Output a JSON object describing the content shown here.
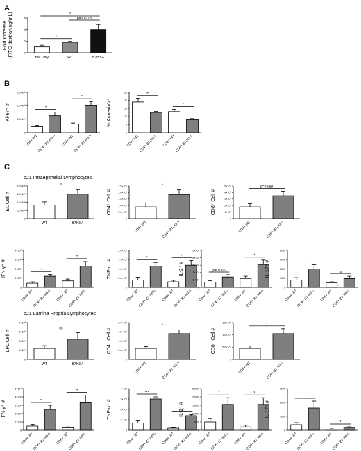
{
  "panels": [
    {
      "id": "A",
      "letter": "A"
    },
    {
      "id": "B",
      "letter": "B"
    },
    {
      "id": "C",
      "letter": "C"
    }
  ],
  "sections": {
    "iel": "d21 Intraepithelial Lymphocytes",
    "lpl": "d21 Lamina Propria Lymphocytes"
  },
  "chart_data": [
    {
      "type": "bar",
      "id": "a",
      "ylabel": "Fold Increase\n(FITC-dextran ug/mL)",
      "categories": [
        "BM Only",
        "WT",
        "B7H3-/-"
      ],
      "values": [
        1.0,
        1.8,
        4.0
      ],
      "errors": [
        0.3,
        0.15,
        0.9
      ],
      "fills": [
        "#ffffff",
        "#8a8a8a",
        "#111111"
      ],
      "ylim": [
        0,
        6
      ],
      "yticks": [
        "0",
        "2",
        "4",
        "6"
      ],
      "sig": [
        {
          "from": 0,
          "to": 1,
          "label": "*"
        },
        {
          "from": 1,
          "to": 2,
          "label": "p=0.0773"
        },
        {
          "from": 0,
          "to": 2,
          "label": "*"
        }
      ]
    },
    {
      "type": "bar",
      "id": "b1",
      "ylabel": "Ki-67⁺ #",
      "categories": [
        "CD4+ WT",
        "CD4+ B7-H3-/-",
        "CD8+ WT",
        "CD8+ B7-H3-/-"
      ],
      "values": [
        2.2,
        6.3,
        3.2,
        10.0
      ],
      "errors": [
        0.5,
        1.3,
        0.4,
        1.6
      ],
      "fills": [
        "#ffffff",
        "#7f7f7f",
        "#ffffff",
        "#7f7f7f"
      ],
      "ylim": [
        0,
        15
      ],
      "yticks": [
        "0",
        "5.0×10⁴",
        "1.0×10⁵",
        "1.5×10⁵"
      ],
      "sig": [
        {
          "from": 0,
          "to": 1,
          "label": "*"
        },
        {
          "from": 2,
          "to": 3,
          "label": "**"
        }
      ]
    },
    {
      "type": "bar",
      "id": "b2",
      "ylabel": "% AnnexinV⁺",
      "categories": [
        "CD4+ WT",
        "CD4+ B7-H3-/-",
        "CD8+ WT",
        "CD8+ B7-H3-/-"
      ],
      "values": [
        19,
        12.5,
        13,
        8
      ],
      "errors": [
        2.3,
        0.6,
        1.5,
        0.7
      ],
      "fills": [
        "#ffffff",
        "#7f7f7f",
        "#ffffff",
        "#7f7f7f"
      ],
      "ylim": [
        0,
        25
      ],
      "yticks": [
        "0",
        "5",
        "10",
        "15",
        "20",
        "25"
      ],
      "sig": [
        {
          "from": 0,
          "to": 1,
          "label": "**"
        },
        {
          "from": 2,
          "to": 3,
          "label": "*"
        }
      ]
    },
    {
      "type": "bar",
      "id": "c1",
      "ylabel": "IEL Cell #",
      "categories": [
        "WT",
        "B7H3-/-"
      ],
      "values": [
        3.3,
        6.0
      ],
      "errors": [
        0.8,
        1.1
      ],
      "fills": [
        "#ffffff",
        "#7f7f7f"
      ],
      "ylim": [
        0,
        8
      ],
      "yticks": [
        "0",
        "2.0×10⁶",
        "4.0×10⁶",
        "6.0×10⁶",
        "8.0×10⁶"
      ],
      "sig": [
        {
          "from": 0,
          "to": 1,
          "label": "*"
        }
      ]
    },
    {
      "type": "bar",
      "id": "c2",
      "ylabel": "CD4⁺ Cell #",
      "categories": [
        "CD4+ WT",
        "CD4+ B7-H3-/-"
      ],
      "values": [
        0.9,
        1.85
      ],
      "errors": [
        0.3,
        0.35
      ],
      "fills": [
        "#ffffff",
        "#7f7f7f"
      ],
      "ylim": [
        0,
        2.5
      ],
      "yticks": [
        "0",
        "5.0×10⁵",
        "1.0×10⁶",
        "1.5×10⁶",
        "2.0×10⁶",
        "2.5×10⁶"
      ],
      "sig": [
        {
          "from": 0,
          "to": 1,
          "label": "*"
        }
      ]
    },
    {
      "type": "bar",
      "id": "c3",
      "ylabel": "CD8⁺ Cell #",
      "categories": [
        "CD8+ WT",
        "CD8+ B7-H3-/-"
      ],
      "values": [
        1.8,
        3.5
      ],
      "errors": [
        0.5,
        0.7
      ],
      "fills": [
        "#ffffff",
        "#7f7f7f"
      ],
      "ylim": [
        0,
        5
      ],
      "yticks": [
        "0",
        "1×10⁶",
        "2×10⁶",
        "3×10⁶",
        "4×10⁶",
        "5×10⁶"
      ],
      "sig": [
        {
          "from": 0,
          "to": 1,
          "label": "p=0.088"
        }
      ]
    },
    {
      "type": "bar",
      "id": "c4",
      "ylabel": "IFN-γ⁺ #",
      "categories": [
        "CD4+ WT",
        "CD4+ B7-H3-/-",
        "CD8+ WT",
        "CD8+ B7-H3-/-"
      ],
      "values": [
        0.45,
        1.2,
        0.7,
        2.3
      ],
      "errors": [
        0.15,
        0.2,
        0.2,
        0.5
      ],
      "fills": [
        "#ffffff",
        "#7f7f7f",
        "#ffffff",
        "#7f7f7f"
      ],
      "ylim": [
        0,
        4
      ],
      "yticks": [
        "0",
        "1×10⁵",
        "2×10⁵",
        "3×10⁵",
        "4×10⁵"
      ],
      "sig": [
        {
          "from": 0,
          "to": 1,
          "label": "*"
        },
        {
          "from": 2,
          "to": 3,
          "label": "**"
        }
      ]
    },
    {
      "type": "bar",
      "id": "c5",
      "ylabel": "TNF-α⁺ #",
      "categories": [
        "CD4+ WT",
        "CD4+ B7-H3-/-",
        "CD8+ WT",
        "CD8+ B7-H3-/-"
      ],
      "values": [
        0.4,
        1.15,
        0.3,
        1.2
      ],
      "errors": [
        0.15,
        0.2,
        0.08,
        0.25
      ],
      "fills": [
        "#ffffff",
        "#7f7f7f",
        "#ffffff",
        "#7f7f7f"
      ],
      "ylim": [
        0,
        2
      ],
      "yticks": [
        "0",
        "5.0×10⁴",
        "1.0×10⁵",
        "1.5×10⁵",
        "2.0×10⁵"
      ],
      "sig": [
        {
          "from": 0,
          "to": 1,
          "label": "*"
        },
        {
          "from": 2,
          "to": 3,
          "label": "**"
        }
      ]
    },
    {
      "type": "bar",
      "id": "c6",
      "ylabel": "IL-2⁺ #",
      "categories": [
        "CD4+ WT",
        "CD4+ B7-H3-/-",
        "CD8+ WT",
        "CD8+ B7-H3-/-"
      ],
      "values": [
        0.7,
        1.4,
        1.2,
        3.1
      ],
      "errors": [
        0.2,
        0.3,
        0.3,
        0.6
      ],
      "fills": [
        "#ffffff",
        "#7f7f7f",
        "#ffffff",
        "#7f7f7f"
      ],
      "ylim": [
        0,
        5
      ],
      "yticks": [
        "0",
        "1×10⁴",
        "2×10⁴",
        "3×10⁴",
        "4×10⁴",
        "5×10⁴"
      ],
      "sig": [
        {
          "from": 0,
          "to": 1,
          "label": "p=0.066"
        },
        {
          "from": 2,
          "to": 3,
          "label": "*"
        }
      ]
    },
    {
      "type": "bar",
      "id": "c7",
      "ylabel": "IL-17⁺ #",
      "categories": [
        "CD4+ WT",
        "CD4+ B7-H3-/-",
        "CD8+ WT",
        "CD8+ B7-H3-/-"
      ],
      "values": [
        1.6,
        4.0,
        1.0,
        1.9
      ],
      "errors": [
        0.5,
        0.9,
        0.2,
        0.5
      ],
      "fills": [
        "#ffffff",
        "#7f7f7f",
        "#ffffff",
        "#7f7f7f"
      ],
      "ylim": [
        0,
        8
      ],
      "yticks": [
        "0",
        "2000",
        "4000",
        "6000",
        "8000"
      ],
      "sig": [
        {
          "from": 0,
          "to": 1,
          "label": "*"
        },
        {
          "from": 2,
          "to": 3,
          "label": "ns"
        }
      ]
    },
    {
      "type": "bar",
      "id": "c8",
      "ylabel": "LPL Cell #",
      "categories": [
        "WT",
        "B7H3-/-"
      ],
      "values": [
        1.2,
        2.2
      ],
      "errors": [
        0.3,
        0.7
      ],
      "fills": [
        "#ffffff",
        "#7f7f7f"
      ],
      "ylim": [
        0,
        4
      ],
      "yticks": [
        "0",
        "1×10⁶",
        "2×10⁶",
        "3×10⁶",
        "4×10⁶"
      ],
      "sig": [
        {
          "from": 0,
          "to": 1,
          "label": "ns"
        }
      ]
    },
    {
      "type": "bar",
      "id": "c9",
      "ylabel": "CD4⁺ Cell #",
      "categories": [
        "CD4+ WT",
        "CD4+ B7-H3-/-"
      ],
      "values": [
        0.6,
        1.4
      ],
      "errors": [
        0.1,
        0.2
      ],
      "fills": [
        "#ffffff",
        "#7f7f7f"
      ],
      "ylim": [
        0,
        2
      ],
      "yticks": [
        "0",
        "5.0×10⁵",
        "1.0×10⁶",
        "1.5×10⁶",
        "2.0×10⁶"
      ],
      "sig": [
        {
          "from": 0,
          "to": 1,
          "label": "*"
        }
      ]
    },
    {
      "type": "bar",
      "id": "c10",
      "ylabel": "CD8⁺ Cell #",
      "categories": [
        "CD8+ WT",
        "CD8+ B7-H3-/-"
      ],
      "values": [
        0.45,
        1.05
      ],
      "errors": [
        0.1,
        0.2
      ],
      "fills": [
        "#ffffff",
        "#7f7f7f"
      ],
      "ylim": [
        0,
        1.5
      ],
      "yticks": [
        "0",
        "5.0×10⁵",
        "1.0×10⁶",
        "1.5×10⁶"
      ],
      "sig": [
        {
          "from": 0,
          "to": 1,
          "label": "*"
        }
      ]
    },
    {
      "type": "bar",
      "id": "c11",
      "ylabel": "IFN-γ⁺ #",
      "categories": [
        "CD4+ WT",
        "CD4+ B7-H3-/-",
        "CD8+ WT",
        "CD8+ B7-H3-/-"
      ],
      "values": [
        0.5,
        2.5,
        0.3,
        3.3
      ],
      "errors": [
        0.2,
        0.5,
        0.1,
        0.9
      ],
      "fills": [
        "#ffffff",
        "#7f7f7f",
        "#ffffff",
        "#7f7f7f"
      ],
      "ylim": [
        0,
        5
      ],
      "yticks": [
        "0",
        "1×10⁴",
        "2×10⁴",
        "3×10⁴",
        "4×10⁴",
        "5×10⁴"
      ],
      "sig": [
        {
          "from": 0,
          "to": 1,
          "label": "**"
        },
        {
          "from": 2,
          "to": 3,
          "label": "**"
        }
      ]
    },
    {
      "type": "bar",
      "id": "c12",
      "ylabel": "TNF-α⁺ #",
      "categories": [
        "CD4+ WT",
        "CD4+ B7-H3-/-",
        "CD8+ WT",
        "CD8+ B7-H3-/-"
      ],
      "values": [
        0.7,
        3.0,
        0.2,
        1.4
      ],
      "errors": [
        0.2,
        0.2,
        0.05,
        0.1
      ],
      "fills": [
        "#ffffff",
        "#7f7f7f",
        "#ffffff",
        "#7f7f7f"
      ],
      "ylim": [
        0,
        4
      ],
      "yticks": [
        "0",
        "1×10⁴",
        "2×10⁴",
        "3×10⁴",
        "4×10⁴"
      ],
      "sig": [
        {
          "from": 0,
          "to": 1,
          "label": "***"
        },
        {
          "from": 2,
          "to": 3,
          "label": "***"
        }
      ]
    },
    {
      "type": "bar",
      "id": "c13",
      "ylabel": "IL-2⁺ #",
      "categories": [
        "CD4+ WT",
        "CD4+ B7-H3-/-",
        "CD8+ WT",
        "CD8+ B7-H3-/-"
      ],
      "values": [
        0.5,
        1.55,
        0.2,
        1.55
      ],
      "errors": [
        0.2,
        0.4,
        0.1,
        0.4
      ],
      "fills": [
        "#ffffff",
        "#7f7f7f",
        "#ffffff",
        "#7f7f7f"
      ],
      "ylim": [
        0,
        2.5
      ],
      "yticks": [
        "0",
        "5000",
        "10000",
        "15000",
        "20000",
        "25000"
      ],
      "sig": [
        {
          "from": 0,
          "to": 1,
          "label": "*"
        },
        {
          "from": 2,
          "to": 3,
          "label": "*"
        }
      ]
    },
    {
      "type": "bar",
      "id": "c14",
      "ylabel": "IL-17⁺ #",
      "categories": [
        "CD4+ WT",
        "CD4+ B7-H3-/-",
        "CD8+ WT",
        "CD8+ B7-H3-/-"
      ],
      "values": [
        0.8,
        3.2,
        0.15,
        0.4
      ],
      "errors": [
        0.3,
        1.0,
        0.05,
        0.1
      ],
      "fills": [
        "#ffffff",
        "#7f7f7f",
        "#ffffff",
        "#7f7f7f"
      ],
      "ylim": [
        0,
        6
      ],
      "yticks": [
        "0",
        "2000",
        "4000",
        "6000"
      ],
      "sig": [
        {
          "from": 0,
          "to": 1,
          "label": "*"
        },
        {
          "from": 2,
          "to": 3,
          "label": "*"
        }
      ]
    }
  ]
}
